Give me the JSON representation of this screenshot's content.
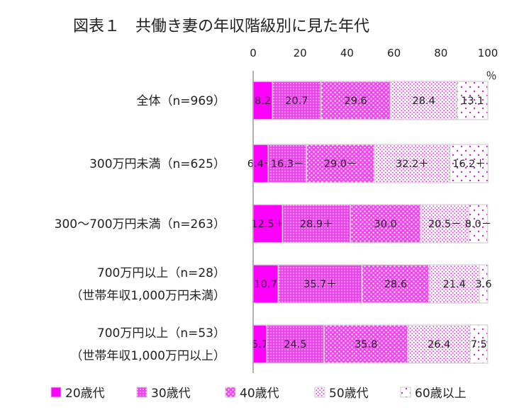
{
  "chart_data": {
    "type": "bar",
    "orientation": "horizontal",
    "stacked": true,
    "title": "図表１　共働き妻の年収階級別に見た年代",
    "unit_label": "％",
    "xlim": [
      0,
      100
    ],
    "xticks": [
      "0",
      "20",
      "40",
      "60",
      "80",
      "100"
    ],
    "categories": [
      [
        "全体（n=969）"
      ],
      [
        "300万円未満（n=625）"
      ],
      [
        "300～700万円未満（n=263）"
      ],
      [
        "700万円以上（n=28）",
        "（世帯年収1,000万円未満）"
      ],
      [
        "700万円以上（n=53）",
        "（世帯年収1,000万円以上）"
      ]
    ],
    "series": [
      {
        "name": "20歳代",
        "color": "#ff00ff",
        "pattern": "solid",
        "values": [
          8.2,
          6.4,
          12.5,
          10.7,
          5.7
        ],
        "labels": [
          "8.2",
          "6.4－",
          "12.5＋",
          "10.7",
          "5.7"
        ]
      },
      {
        "name": "30歳代",
        "color": "#ee22ee",
        "pattern": "dense-dots",
        "values": [
          20.7,
          16.3,
          28.9,
          35.7,
          24.5
        ],
        "labels": [
          "20.7",
          "16.3－",
          "28.9＋",
          "35.7＋",
          "24.5"
        ]
      },
      {
        "name": "40歳代",
        "color": "#ee44ee",
        "pattern": "diamond-dots",
        "values": [
          29.6,
          29.0,
          30.0,
          28.6,
          35.8
        ],
        "labels": [
          "29.6",
          "29.0－",
          "30.0",
          "28.6",
          "35.8"
        ]
      },
      {
        "name": "50歳代",
        "color": "#f070f0",
        "pattern": "medium-dots",
        "values": [
          28.4,
          32.2,
          20.5,
          21.4,
          26.4
        ],
        "labels": [
          "28.4",
          "32.2＋",
          "20.5－",
          "21.4",
          "26.4"
        ]
      },
      {
        "name": "60歳以上",
        "color": "#e040e0",
        "pattern": "sparse-dots",
        "values": [
          13.1,
          16.2,
          8.0,
          3.6,
          7.5
        ],
        "labels": [
          "13.1",
          "16.2＋",
          "8.0－",
          "3.6",
          "7.5"
        ]
      }
    ]
  }
}
